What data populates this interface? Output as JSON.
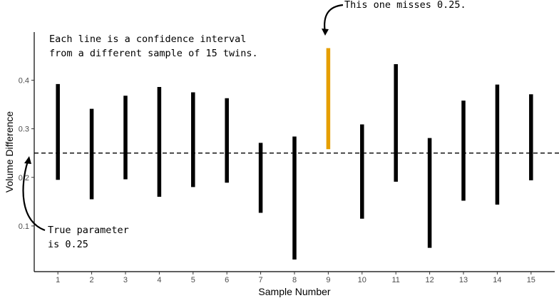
{
  "chart_data": {
    "type": "errorbar",
    "title": "",
    "xlabel": "Sample Number",
    "ylabel": "Volume Difference",
    "x": [
      1,
      2,
      3,
      4,
      5,
      6,
      7,
      8,
      9,
      10,
      11,
      12,
      13,
      14,
      15
    ],
    "intervals": [
      {
        "sample": 1,
        "low": 0.195,
        "high": 0.392,
        "missed": false
      },
      {
        "sample": 2,
        "low": 0.155,
        "high": 0.341,
        "missed": false
      },
      {
        "sample": 3,
        "low": 0.196,
        "high": 0.368,
        "missed": false
      },
      {
        "sample": 4,
        "low": 0.16,
        "high": 0.386,
        "missed": false
      },
      {
        "sample": 5,
        "low": 0.18,
        "high": 0.375,
        "missed": false
      },
      {
        "sample": 6,
        "low": 0.189,
        "high": 0.363,
        "missed": false
      },
      {
        "sample": 7,
        "low": 0.127,
        "high": 0.271,
        "missed": false
      },
      {
        "sample": 8,
        "low": 0.031,
        "high": 0.284,
        "missed": false
      },
      {
        "sample": 9,
        "low": 0.258,
        "high": 0.466,
        "missed": true
      },
      {
        "sample": 10,
        "low": 0.115,
        "high": 0.309,
        "missed": false
      },
      {
        "sample": 11,
        "low": 0.191,
        "high": 0.433,
        "missed": false
      },
      {
        "sample": 12,
        "low": 0.055,
        "high": 0.281,
        "missed": false
      },
      {
        "sample": 13,
        "low": 0.152,
        "high": 0.358,
        "missed": false
      },
      {
        "sample": 14,
        "low": 0.144,
        "high": 0.391,
        "missed": false
      },
      {
        "sample": 15,
        "low": 0.194,
        "high": 0.371,
        "missed": false
      }
    ],
    "reference_line": {
      "y": 0.25,
      "style": "dashed"
    },
    "y_ticks": [
      0.1,
      0.2,
      0.3,
      0.4
    ],
    "y_tick_labels": [
      "0.1",
      "0.2",
      "0.3",
      "0.4"
    ],
    "x_tick_labels": [
      "1",
      "2",
      "3",
      "4",
      "5",
      "6",
      "7",
      "8",
      "9",
      "10",
      "11",
      "12",
      "13",
      "14",
      "15"
    ],
    "ylim": [
      0.006,
      0.499
    ],
    "xlim": [
      0.3,
      15.7
    ],
    "grid": false,
    "colors": {
      "normal": "#000000",
      "missed": "#E69F00"
    },
    "annotations": {
      "top_left": [
        "Each line is a confidence interval",
        "from a different sample of 15 twins."
      ],
      "miss": "This one misses 0.25.",
      "true_param": [
        "True parameter",
        "is 0.25"
      ]
    }
  }
}
